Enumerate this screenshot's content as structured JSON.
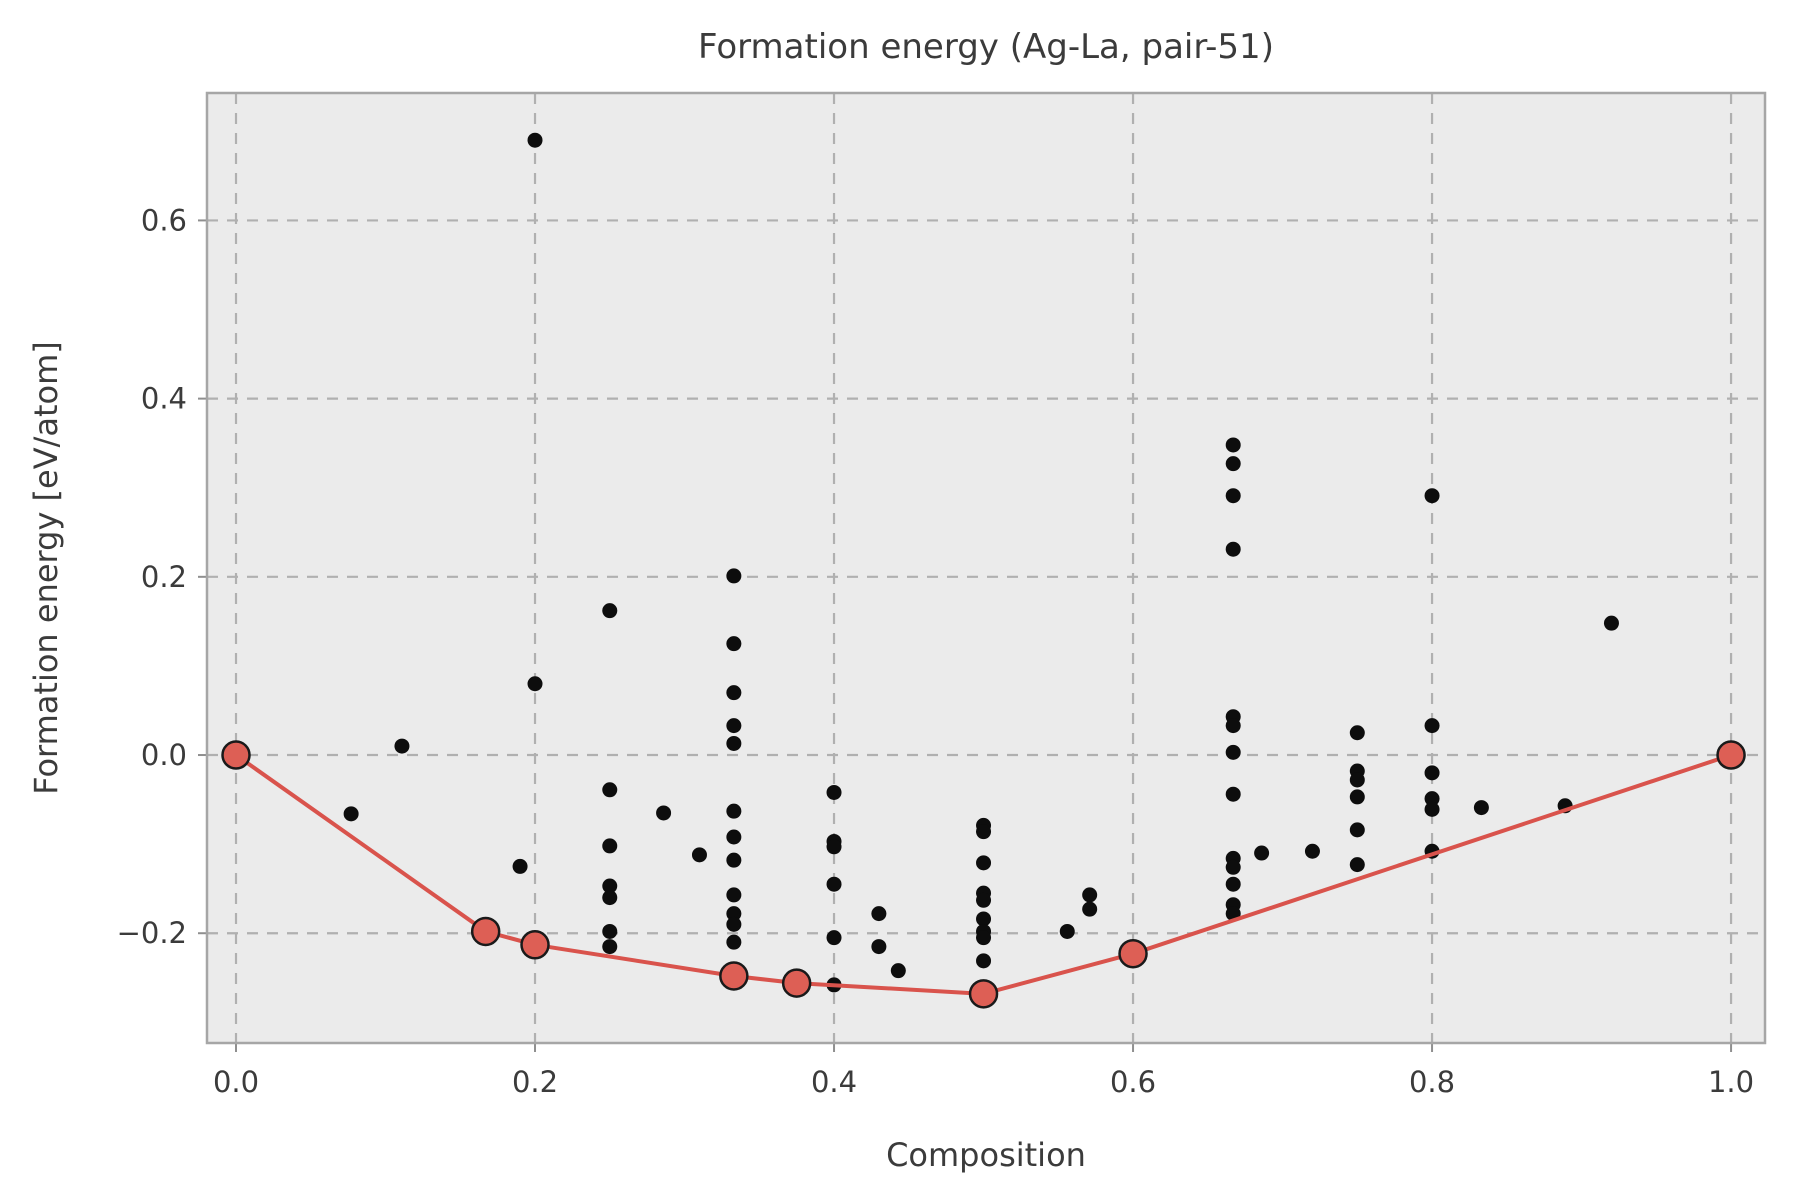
{
  "figure": {
    "background": "#ffffff"
  },
  "chart_data": {
    "type": "scatter",
    "title": "Formation energy (Ag-La, pair-51)",
    "xlabel": "Composition",
    "ylabel": "Formation energy [eV/atom]",
    "xlim": [
      -0.0194,
      1.0227
    ],
    "ylim": [
      -0.3232,
      0.743
    ],
    "x_ticks": [
      0.0,
      0.2,
      0.4,
      0.6,
      0.8,
      1.0
    ],
    "x_tick_labels": [
      "0.0",
      "0.2",
      "0.4",
      "0.6",
      "0.8",
      "1.0"
    ],
    "y_ticks": [
      -0.2,
      0.0,
      0.2,
      0.4,
      0.6
    ],
    "y_tick_labels": [
      "−0.2",
      "0.0",
      "0.2",
      "0.4",
      "0.6"
    ],
    "grid": true,
    "grid_style": "dashed",
    "legend_position": "none",
    "series": [
      {
        "name": "formation-energy-entries",
        "type": "scatter",
        "color": "#0d0d0d",
        "marker": "circle",
        "marker_radius": 7.5,
        "points": [
          [
            0.077,
            -0.066
          ],
          [
            0.111,
            0.01
          ],
          [
            0.19,
            -0.125
          ],
          [
            0.2,
            0.69
          ],
          [
            0.2,
            0.08
          ],
          [
            0.25,
            0.162
          ],
          [
            0.25,
            -0.039
          ],
          [
            0.25,
            -0.102
          ],
          [
            0.25,
            -0.147
          ],
          [
            0.25,
            -0.16
          ],
          [
            0.25,
            -0.198
          ],
          [
            0.25,
            -0.215
          ],
          [
            0.286,
            -0.065
          ],
          [
            0.31,
            -0.112
          ],
          [
            0.333,
            0.201
          ],
          [
            0.333,
            0.125
          ],
          [
            0.333,
            0.07
          ],
          [
            0.333,
            0.033
          ],
          [
            0.333,
            0.013
          ],
          [
            0.333,
            -0.063
          ],
          [
            0.333,
            -0.092
          ],
          [
            0.333,
            -0.118
          ],
          [
            0.333,
            -0.157
          ],
          [
            0.333,
            -0.178
          ],
          [
            0.333,
            -0.19
          ],
          [
            0.333,
            -0.21
          ],
          [
            0.4,
            -0.042
          ],
          [
            0.4,
            -0.097
          ],
          [
            0.4,
            -0.103
          ],
          [
            0.4,
            -0.145
          ],
          [
            0.4,
            -0.205
          ],
          [
            0.4,
            -0.258
          ],
          [
            0.43,
            -0.178
          ],
          [
            0.43,
            -0.215
          ],
          [
            0.443,
            -0.242
          ],
          [
            0.5,
            -0.079
          ],
          [
            0.5,
            -0.086
          ],
          [
            0.5,
            -0.121
          ],
          [
            0.5,
            -0.155
          ],
          [
            0.5,
            -0.163
          ],
          [
            0.5,
            -0.184
          ],
          [
            0.5,
            -0.198
          ],
          [
            0.5,
            -0.205
          ],
          [
            0.5,
            -0.231
          ],
          [
            0.556,
            -0.198
          ],
          [
            0.571,
            -0.157
          ],
          [
            0.571,
            -0.173
          ],
          [
            0.667,
            0.348
          ],
          [
            0.667,
            0.327
          ],
          [
            0.667,
            0.291
          ],
          [
            0.667,
            0.231
          ],
          [
            0.667,
            0.043
          ],
          [
            0.667,
            0.033
          ],
          [
            0.667,
            0.003
          ],
          [
            0.667,
            -0.044
          ],
          [
            0.667,
            -0.116
          ],
          [
            0.667,
            -0.126
          ],
          [
            0.667,
            -0.145
          ],
          [
            0.667,
            -0.168
          ],
          [
            0.667,
            -0.178
          ],
          [
            0.686,
            -0.11
          ],
          [
            0.72,
            -0.108
          ],
          [
            0.75,
            0.025
          ],
          [
            0.75,
            -0.018
          ],
          [
            0.75,
            -0.028
          ],
          [
            0.75,
            -0.047
          ],
          [
            0.75,
            -0.084
          ],
          [
            0.75,
            -0.123
          ],
          [
            0.8,
            0.291
          ],
          [
            0.8,
            0.033
          ],
          [
            0.8,
            -0.02
          ],
          [
            0.8,
            -0.049
          ],
          [
            0.8,
            -0.061
          ],
          [
            0.8,
            -0.108
          ],
          [
            0.833,
            -0.059
          ],
          [
            0.889,
            -0.057
          ],
          [
            0.92,
            0.148
          ]
        ]
      },
      {
        "name": "convex-hull",
        "type": "line-with-markers",
        "line_color": "#d9534c",
        "line_width": 4,
        "marker_fill": "#dd5f55",
        "marker_edge": "#1a1a1a",
        "marker_edge_width": 2.5,
        "marker_radius": 13.5,
        "points": [
          [
            0.0,
            0.0
          ],
          [
            0.167,
            -0.198
          ],
          [
            0.2,
            -0.213
          ],
          [
            0.333,
            -0.248
          ],
          [
            0.375,
            -0.256
          ],
          [
            0.5,
            -0.268
          ],
          [
            0.6,
            -0.223
          ],
          [
            1.0,
            0.0
          ]
        ]
      }
    ],
    "style": {
      "plot_bg": "#ebebeb",
      "grid_color": "#b0b0b0",
      "grid_dash": "11,9",
      "grid_width": 2.2,
      "spine_color": "#a6a6a6",
      "spine_width": 2.5,
      "tick_color": "#8f8f8f",
      "text_color": "#3b3b3b",
      "title_size": 34,
      "label_size": 32,
      "tick_size": 29
    }
  }
}
